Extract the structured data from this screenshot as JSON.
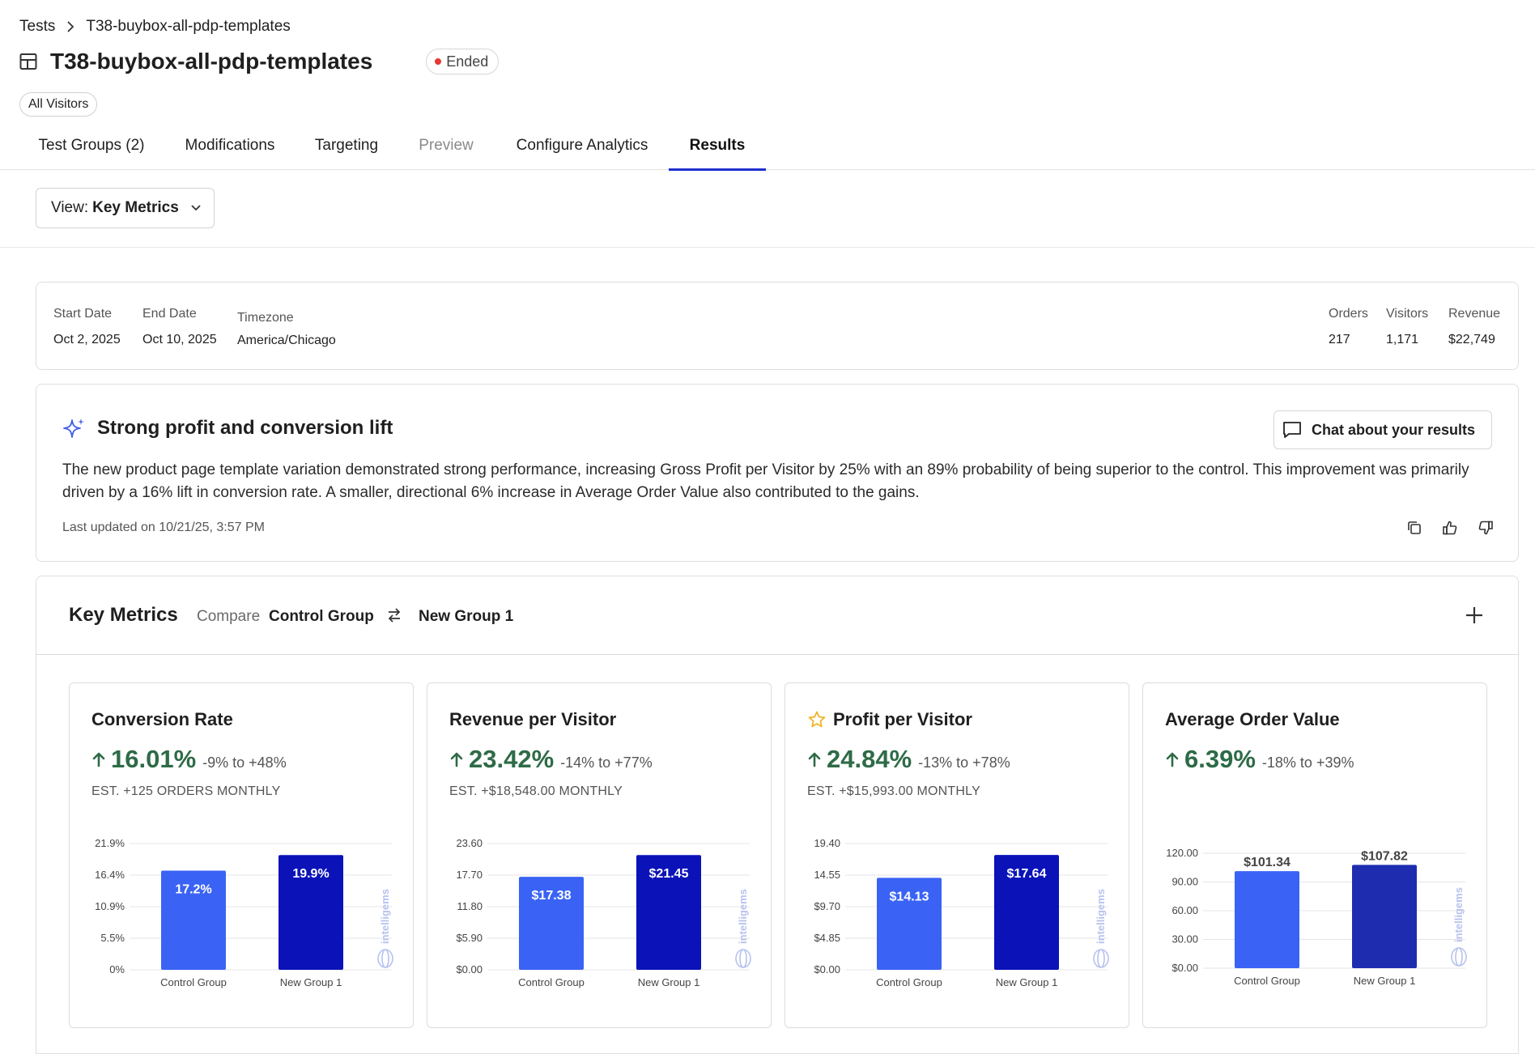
{
  "breadcrumb": {
    "root": "Tests",
    "current": "T38-buybox-all-pdp-templates"
  },
  "header": {
    "title": "T38-buybox-all-pdp-templates",
    "status": "Ended",
    "audience": "All Visitors"
  },
  "tabs": [
    {
      "label": "Test Groups (2)",
      "state": "normal"
    },
    {
      "label": "Modifications",
      "state": "normal"
    },
    {
      "label": "Targeting",
      "state": "normal"
    },
    {
      "label": "Preview",
      "state": "disabled"
    },
    {
      "label": "Configure Analytics",
      "state": "normal"
    },
    {
      "label": "Results",
      "state": "active"
    }
  ],
  "view_select": {
    "prefix": "View:",
    "value": "Key Metrics"
  },
  "test_info": {
    "start_label": "Start Date",
    "start_value": "Oct 2, 2025",
    "end_label": "End Date",
    "end_value": "Oct 10, 2025",
    "tz_label": "Timezone",
    "tz_value": "America/Chicago",
    "orders_label": "Orders",
    "orders_value": "217",
    "visitors_label": "Visitors",
    "visitors_value": "1,171",
    "revenue_label": "Revenue",
    "revenue_value": "$22,749"
  },
  "summary": {
    "title": "Strong profit and conversion lift",
    "chat_label": "Chat about your results",
    "body": "The new product page template variation demonstrated strong performance, increasing Gross Profit per Visitor by 25% with an 89% probability of being superior to the control. This improvement was primarily driven by a 16% lift in conversion rate. A smaller, directional 6% increase in Average Order Value also contributed to the gains.",
    "updated": "Last updated on 10/21/25, 3:57 PM"
  },
  "key_metrics": {
    "title": "Key Metrics",
    "compare_label": "Compare",
    "group_a": "Control Group",
    "group_b": "New Group 1"
  },
  "colors": {
    "accent": "#1f2fd1",
    "positive": "#2e6b47",
    "bar_control": "#3a63f5",
    "bar_new": "#0a12b8",
    "bar_new_alt": "#1e2db0",
    "star": "#f0b429"
  },
  "watermark": "intelligems",
  "metrics": [
    {
      "name": "Conversion Rate",
      "starred": false,
      "lift": "16.01%",
      "range": "-9% to +48%",
      "est": "EST. +125 ORDERS MONTHLY",
      "chart_data": {
        "type": "bar",
        "categories": [
          "Control Group",
          "New Group 1"
        ],
        "values": [
          17.2,
          19.9
        ],
        "value_labels": [
          "17.2%",
          "19.9%"
        ],
        "label_position": "inside",
        "yticks": [
          "0%",
          "5.5%",
          "10.9%",
          "16.4%",
          "21.9%"
        ],
        "ylim": [
          0,
          21.9
        ]
      }
    },
    {
      "name": "Revenue per Visitor",
      "starred": false,
      "lift": "23.42%",
      "range": "-14% to +77%",
      "est": "EST. +$18,548.00 MONTHLY",
      "chart_data": {
        "type": "bar",
        "categories": [
          "Control Group",
          "New Group 1"
        ],
        "values": [
          17.38,
          21.45
        ],
        "value_labels": [
          "$17.38",
          "$21.45"
        ],
        "label_position": "inside",
        "yticks": [
          "$0.00",
          "$5.90",
          "11.80",
          "17.70",
          "23.60"
        ],
        "ylim": [
          0,
          23.6
        ]
      }
    },
    {
      "name": "Profit per Visitor",
      "starred": true,
      "lift": "24.84%",
      "range": "-13% to +78%",
      "est": "EST. +$15,993.00 MONTHLY",
      "chart_data": {
        "type": "bar",
        "categories": [
          "Control Group",
          "New Group 1"
        ],
        "values": [
          14.13,
          17.64
        ],
        "value_labels": [
          "$14.13",
          "$17.64"
        ],
        "label_position": "inside",
        "yticks": [
          "$0.00",
          "$4.85",
          "$9.70",
          "14.55",
          "19.40"
        ],
        "ylim": [
          0,
          19.4
        ]
      }
    },
    {
      "name": "Average Order Value",
      "starred": false,
      "lift": "6.39%",
      "range": "-18% to +39%",
      "est": "",
      "chart_data": {
        "type": "bar",
        "categories": [
          "Control Group",
          "New Group 1"
        ],
        "values": [
          101.34,
          107.82
        ],
        "value_labels": [
          "$101.34",
          "$107.82"
        ],
        "label_position": "above",
        "yticks": [
          "$0.00",
          "30.00",
          "60.00",
          "90.00",
          "120.00"
        ],
        "ylim": [
          0,
          120
        ]
      }
    }
  ]
}
